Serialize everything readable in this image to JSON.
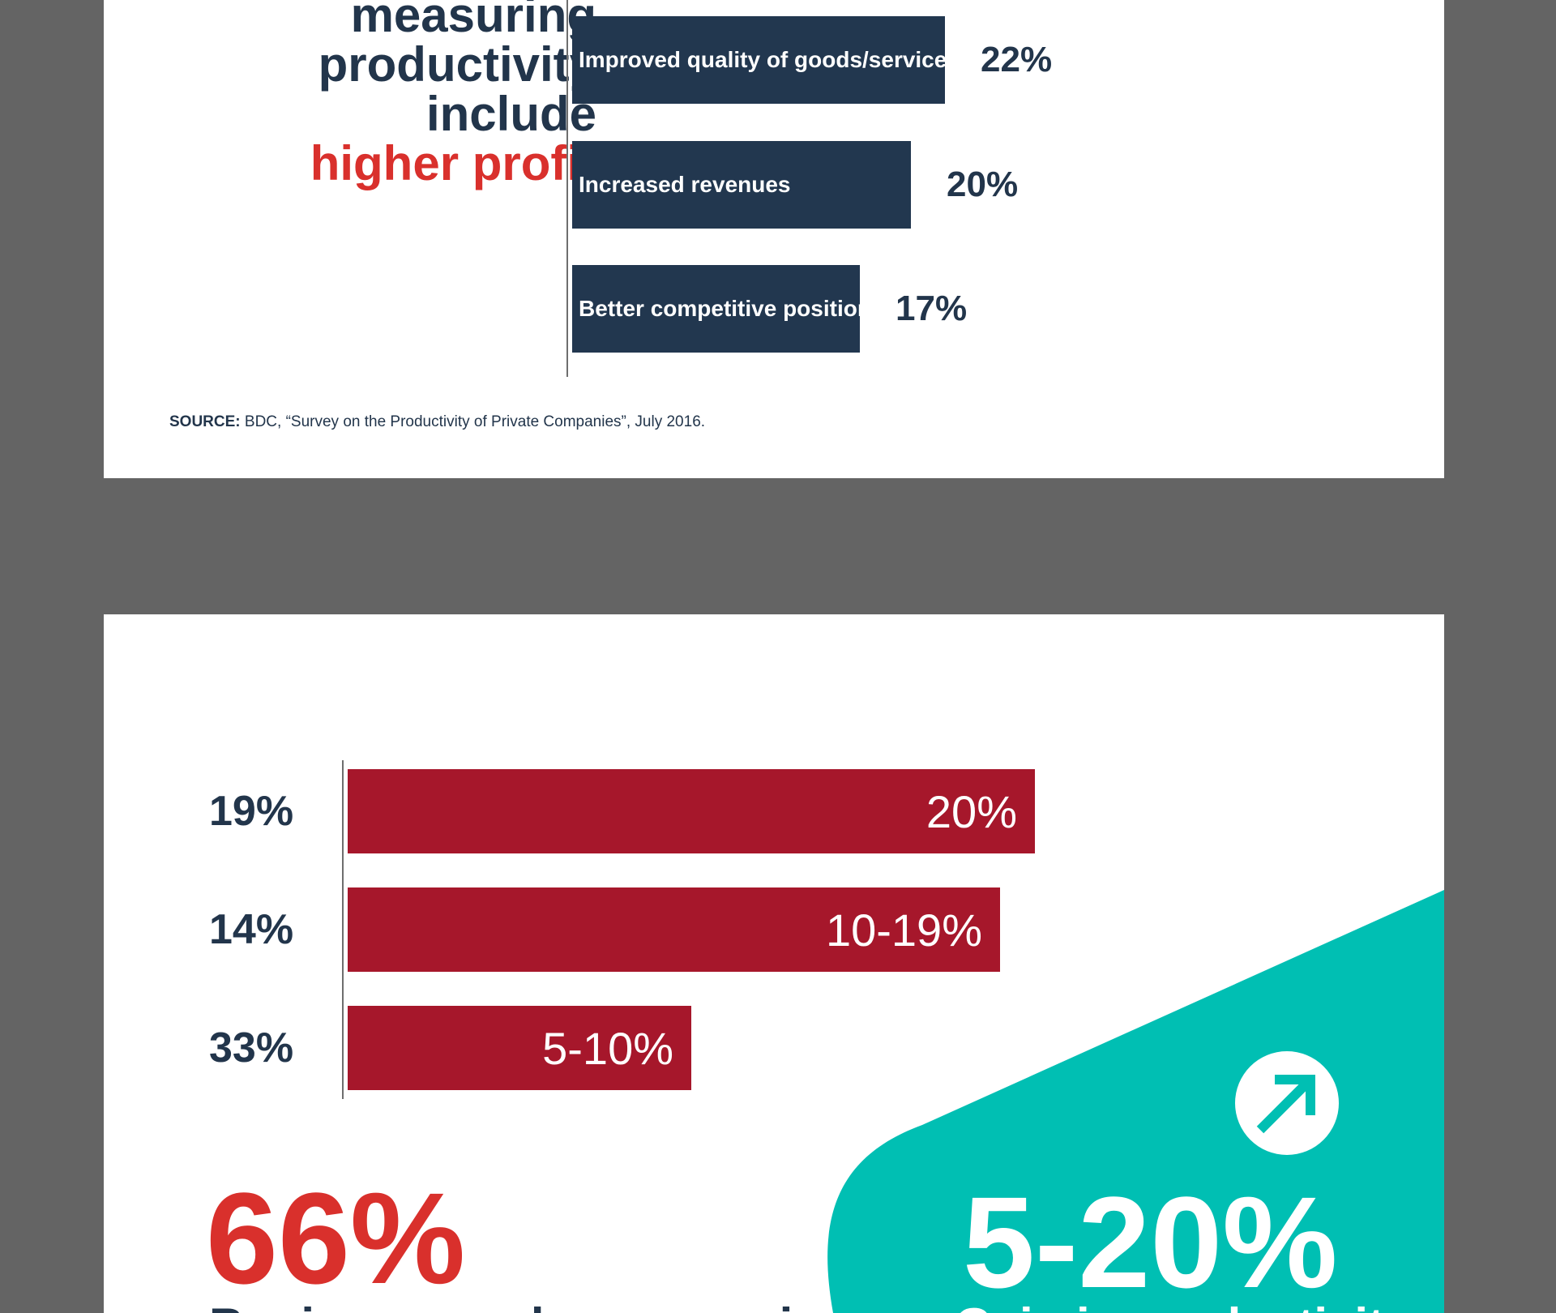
{
  "top_panel": {
    "headline": {
      "lines": [
        "measuring",
        "productivity",
        "include"
      ],
      "highlight": "higher profit"
    },
    "source": {
      "label": "SOURCE:",
      "text": " BDC, “Survey on the Productivity of Private Companies”, July 2016."
    }
  },
  "bottom_panel": {
    "big_stat": "66%",
    "big_stat_caption": "Businesses who saw an in",
    "teal_stat": "5-20%",
    "teal_caption": "Gain in productivity"
  },
  "colors": {
    "navy": "#22374f",
    "crimson": "#a6172b",
    "red": "#d9302c",
    "teal": "#00bfb3",
    "background": "#646464"
  },
  "chart_data": [
    {
      "type": "bar",
      "orientation": "horizontal",
      "categories": [
        "Improved quality of goods/services",
        "Increased revenues",
        "Better competitive positioning"
      ],
      "values": [
        22,
        20,
        17
      ],
      "value_labels": [
        "22%",
        "20%",
        "17%"
      ],
      "xlim": [
        0,
        33
      ]
    },
    {
      "type": "bar",
      "orientation": "horizontal",
      "categories": [
        "20%",
        "10-19%",
        "5-10%"
      ],
      "values": [
        19,
        14,
        33
      ],
      "value_labels": [
        "19%",
        "14%",
        "33%"
      ],
      "bar_lengths_units": [
        20,
        19,
        10
      ],
      "xlim": [
        0,
        25
      ]
    }
  ]
}
